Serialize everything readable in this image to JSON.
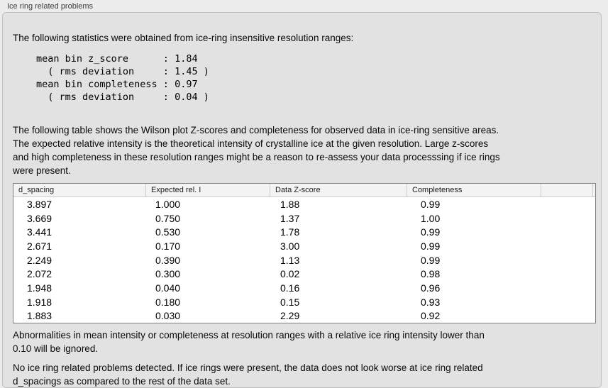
{
  "header": {
    "title": "Ice ring related problems"
  },
  "intro_text": "The following statistics were obtained from ice-ring insensitive resolution ranges:",
  "stats_block": "mean bin z_score      : 1.84\n  ( rms deviation     : 1.45 )\nmean bin completeness : 0.97\n  ( rms deviation     : 0.04 )",
  "stats": {
    "mean_bin_z_score": "1.84",
    "z_score_rms_deviation": "1.45",
    "mean_bin_completeness": "0.97",
    "completeness_rms_deviation": "0.04"
  },
  "table_description": "The following table shows the Wilson plot Z-scores and completeness for observed data in ice-ring sensitive areas.\nThe expected relative intensity is the theoretical intensity of crystalline ice at the given resolution. Large z-scores\nand high completeness in these resolution ranges might be a reason to re-assess your data processsing if ice rings\nwere present.",
  "table": {
    "columns": [
      "d_spacing",
      "Expected rel. I",
      "Data Z-score",
      "Completeness"
    ],
    "rows": [
      [
        "3.897",
        "1.000",
        "1.88",
        "0.99"
      ],
      [
        "3.669",
        "0.750",
        "1.37",
        "1.00"
      ],
      [
        "3.441",
        "0.530",
        "1.78",
        "0.99"
      ],
      [
        "2.671",
        "0.170",
        "3.00",
        "0.99"
      ],
      [
        "2.249",
        "0.390",
        "1.13",
        "0.99"
      ],
      [
        "2.072",
        "0.300",
        "0.02",
        "0.98"
      ],
      [
        "1.948",
        "0.040",
        "0.16",
        "0.96"
      ],
      [
        "1.918",
        "0.180",
        "0.15",
        "0.93"
      ],
      [
        "1.883",
        "0.030",
        "2.29",
        "0.92"
      ]
    ]
  },
  "ignore_note": "Abnormalities in mean intensity or completeness at resolution ranges with a relative ice ring intensity lower than\n0.10 will be ignored.",
  "conclusion": "No ice ring related problems detected. If ice rings were present, the data does not look worse at ice ring related\nd_spacings as compared to the rest of the data set.",
  "colors": {
    "window_background": "#ececec",
    "panel_background": "#e2e2e2",
    "panel_border": "#bfbfbf",
    "table_border": "#7f7f7f",
    "table_header_background": "#f3f3f3"
  }
}
